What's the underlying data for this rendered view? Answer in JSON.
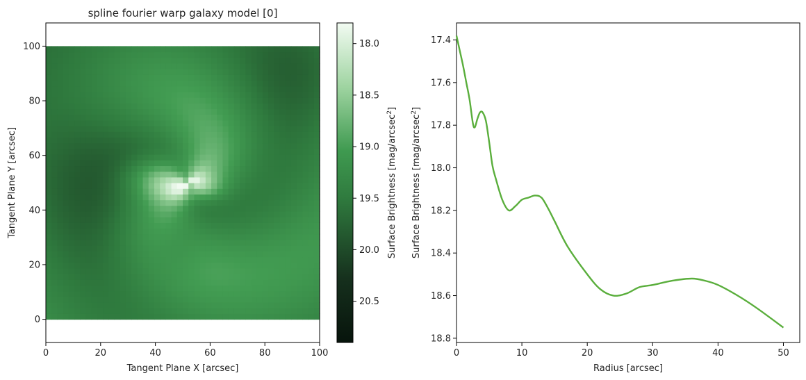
{
  "chart_data": [
    {
      "type": "heatmap",
      "title": "spline fourier warp galaxy model [0]",
      "xlabel": "Tangent Plane X [arcsec]",
      "ylabel": "Tangent Plane Y [arcsec]",
      "xlim": [
        0,
        100
      ],
      "ylim": [
        -8.5,
        108.5
      ],
      "image_extent": [
        0,
        100,
        0,
        100
      ],
      "xticks": [
        "0",
        "20",
        "40",
        "60",
        "80",
        "100"
      ],
      "yticks": [
        "0",
        "20",
        "40",
        "60",
        "80",
        "100"
      ],
      "xtick_values": [
        0,
        20,
        40,
        60,
        80,
        100
      ],
      "ytick_values": [
        0,
        20,
        40,
        60,
        80,
        100
      ],
      "colormap": "Greens_r (cubehelix-like dark to light green)",
      "colors": {
        "dark": "#07140c",
        "mid": "#3c8c4c",
        "light": "#f2fbf2"
      },
      "colorbar": {
        "label_main": "Surface Brightness [mag/arcsec",
        "label_sup": "2",
        "label_end": "]",
        "range": [
          17.8,
          20.9
        ],
        "ticks": [
          "18.0",
          "18.5",
          "19.0",
          "19.5",
          "20.0",
          "20.5"
        ],
        "tick_values": [
          18.0,
          18.5,
          19.0,
          19.5,
          20.0,
          20.5
        ]
      }
    },
    {
      "type": "line",
      "xlabel": "Radius [arcsec]",
      "ylabel_main": "Surface Brightness [mag/arcsec",
      "ylabel_sup": "2",
      "ylabel_end": "]",
      "xlim": [
        0,
        52.5
      ],
      "ylim": [
        18.82,
        17.32
      ],
      "y_inverted": true,
      "xticks": [
        "0",
        "10",
        "20",
        "30",
        "40",
        "50"
      ],
      "xtick_values": [
        0,
        10,
        20,
        30,
        40,
        50
      ],
      "yticks": [
        "17.4",
        "17.6",
        "17.8",
        "18.0",
        "18.2",
        "18.4",
        "18.6",
        "18.8"
      ],
      "ytick_values": [
        17.4,
        17.6,
        17.8,
        18.0,
        18.2,
        18.4,
        18.6,
        18.8
      ],
      "line_color": "#5aae3c",
      "x": [
        0,
        0.5,
        1.0,
        1.5,
        2.0,
        2.5,
        2.8,
        3.2,
        3.6,
        4.0,
        4.5,
        5.0,
        5.5,
        6.0,
        7.0,
        8.0,
        9.0,
        10.0,
        11.0,
        12.0,
        13.0,
        14.0,
        15.0,
        17.0,
        20.0,
        22.0,
        24.0,
        26.0,
        28.0,
        30.0,
        33.0,
        36.0,
        38.0,
        40.0,
        43.0,
        46.0,
        50.0
      ],
      "y": [
        17.38,
        17.45,
        17.52,
        17.6,
        17.68,
        17.79,
        17.81,
        17.77,
        17.74,
        17.74,
        17.78,
        17.88,
        17.99,
        18.05,
        18.15,
        18.2,
        18.18,
        18.15,
        18.14,
        18.13,
        18.14,
        18.19,
        18.25,
        18.37,
        18.5,
        18.57,
        18.6,
        18.59,
        18.56,
        18.55,
        18.53,
        18.52,
        18.53,
        18.55,
        18.6,
        18.66,
        18.75
      ]
    }
  ]
}
